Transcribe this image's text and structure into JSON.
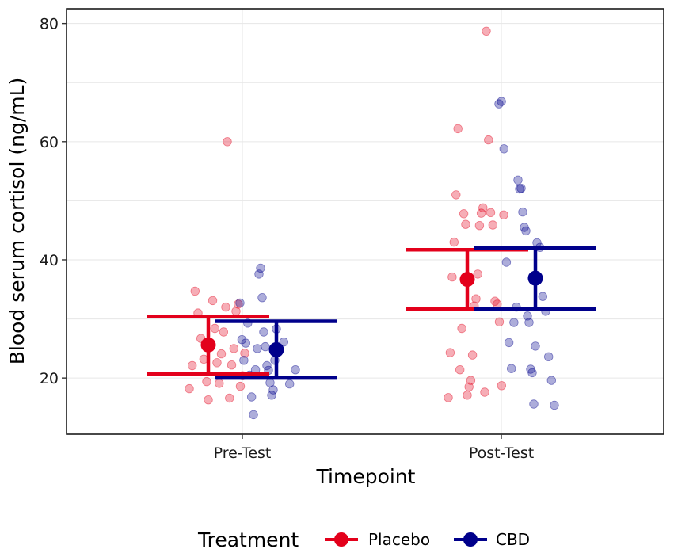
{
  "chart_data": {
    "type": "scatter",
    "xlabel": "Timepoint",
    "ylabel": "Blood serum cortisol (ng/mL)",
    "categories": [
      "Pre-Test",
      "Post-Test"
    ],
    "ylim": [
      10.5,
      82.5
    ],
    "yticks": [
      20,
      40,
      60,
      80
    ],
    "ytick_labels": [
      "20",
      "40",
      "60",
      "80"
    ],
    "legend": {
      "title": "Treatment",
      "position": "bottom"
    },
    "series": [
      {
        "name": "Placebo",
        "color": "#E3001B",
        "summary": [
          {
            "category": "Pre-Test",
            "mean": 25.6,
            "lower": 20.7,
            "upper": 30.4
          },
          {
            "category": "Post-Test",
            "mean": 36.7,
            "lower": 31.7,
            "upper": 41.7
          }
        ],
        "points": [
          {
            "category": "Pre-Test",
            "jitter": -0.35,
            "values": [
              18.2,
              22.1,
              34.7,
              31.0,
              26.7,
              23.2,
              19.4
            ]
          },
          {
            "category": "Pre-Test",
            "jitter": -0.2,
            "values": [
              16.3,
              25.9,
              33.1,
              28.4,
              22.6,
              19.1,
              24.1,
              27.8,
              32.0
            ]
          },
          {
            "category": "Pre-Test",
            "jitter": -0.05,
            "values": [
              60.0,
              16.6,
              22.2,
              25.0,
              31.3,
              32.5,
              18.6,
              20.4,
              24.2
            ]
          },
          {
            "category": "Post-Test",
            "jitter": -0.35,
            "values": [
              16.7,
              24.3,
              37.1,
              43.0,
              51.0,
              62.2,
              21.4,
              28.4,
              47.8,
              46.0
            ]
          },
          {
            "category": "Post-Test",
            "jitter": -0.2,
            "values": [
              17.1,
              18.5,
              19.6,
              23.9,
              32.2,
              33.4,
              37.6,
              45.8,
              47.9,
              48.8,
              17.6
            ]
          },
          {
            "category": "Post-Test",
            "jitter": -0.05,
            "values": [
              78.7,
              60.3,
              48.0,
              45.9,
              33.0,
              32.5,
              29.5,
              18.7,
              47.6
            ]
          }
        ]
      },
      {
        "name": "CBD",
        "color": "#00008B",
        "summary": [
          {
            "category": "Pre-Test",
            "mean": 24.8,
            "lower": 20.0,
            "upper": 29.6
          },
          {
            "category": "Pre-Test",
            "mean": 24.8,
            "lower": 20.0,
            "upper": 29.6
          }
        ],
        "points": [
          {
            "category": "Pre-Test",
            "jitter": 0.05,
            "values": [
              32.7,
              26.5,
              23.0,
              25.9,
              29.3,
              20.5,
              16.8,
              13.8,
              21.4,
              25.0
            ]
          },
          {
            "category": "Pre-Test",
            "jitter": 0.2,
            "values": [
              37.6,
              38.6,
              33.6,
              27.8,
              25.3,
              22.1,
              21.3,
              19.2,
              17.1,
              18.0,
              23.0,
              28.3
            ]
          },
          {
            "category": "Pre-Test",
            "jitter": 0.35,
            "values": [
              24.5,
              26.1,
              19.0,
              21.4
            ]
          },
          {
            "category": "Post-Test",
            "jitter": 0.05,
            "values": [
              66.4,
              66.8,
              58.8,
              39.6,
              26.0,
              21.6,
              29.4,
              32.0
            ]
          },
          {
            "category": "Post-Test",
            "jitter": 0.2,
            "values": [
              53.5,
              52.0,
              52.1,
              48.1,
              45.5,
              44.9,
              30.5,
              29.4,
              21.5,
              20.9,
              15.6,
              25.4
            ]
          },
          {
            "category": "Post-Test",
            "jitter": 0.35,
            "values": [
              42.9,
              42.1,
              33.8,
              31.3,
              23.6,
              19.6,
              15.4
            ]
          }
        ]
      }
    ]
  }
}
